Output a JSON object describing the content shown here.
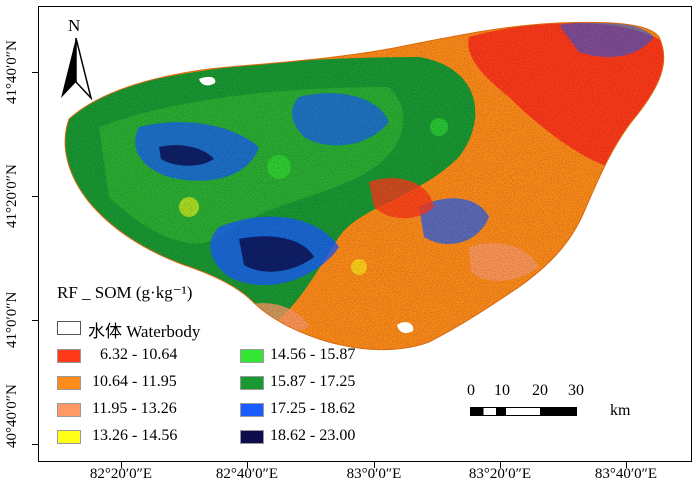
{
  "map": {
    "north_label": "N",
    "latitude_labels": [
      "41°40′0″N",
      "41°20′0″N",
      "41°0′0″N",
      "40°40′0″N"
    ],
    "longitude_labels": [
      "82°20′0″E",
      "82°40′0″E",
      "83°0′0″E",
      "83°20′0″E",
      "83°40′0″E"
    ],
    "legend": {
      "title": "RF _ SOM (g·kg⁻¹)",
      "water": {
        "label": "水体  Waterbody",
        "color": "#ffffff"
      },
      "classes": [
        {
          "label": "6.32 - 10.64",
          "color": "#ff3a1a"
        },
        {
          "label": "10.64 - 11.95",
          "color": "#ff8c1a"
        },
        {
          "label": "11.95 - 13.26",
          "color": "#ff9966"
        },
        {
          "label": "13.26 - 14.56",
          "color": "#ffff1a"
        },
        {
          "label": "14.56 - 15.87",
          "color": "#33e633"
        },
        {
          "label": "15.87 - 17.25",
          "color": "#1a9933"
        },
        {
          "label": "17.25 - 18.62",
          "color": "#1a5cff"
        },
        {
          "label": "18.62 - 23.00",
          "color": "#0d0d4d"
        }
      ]
    },
    "scale_bar": {
      "ticks": [
        "0",
        "10",
        "20",
        "30"
      ],
      "unit": "km"
    }
  }
}
